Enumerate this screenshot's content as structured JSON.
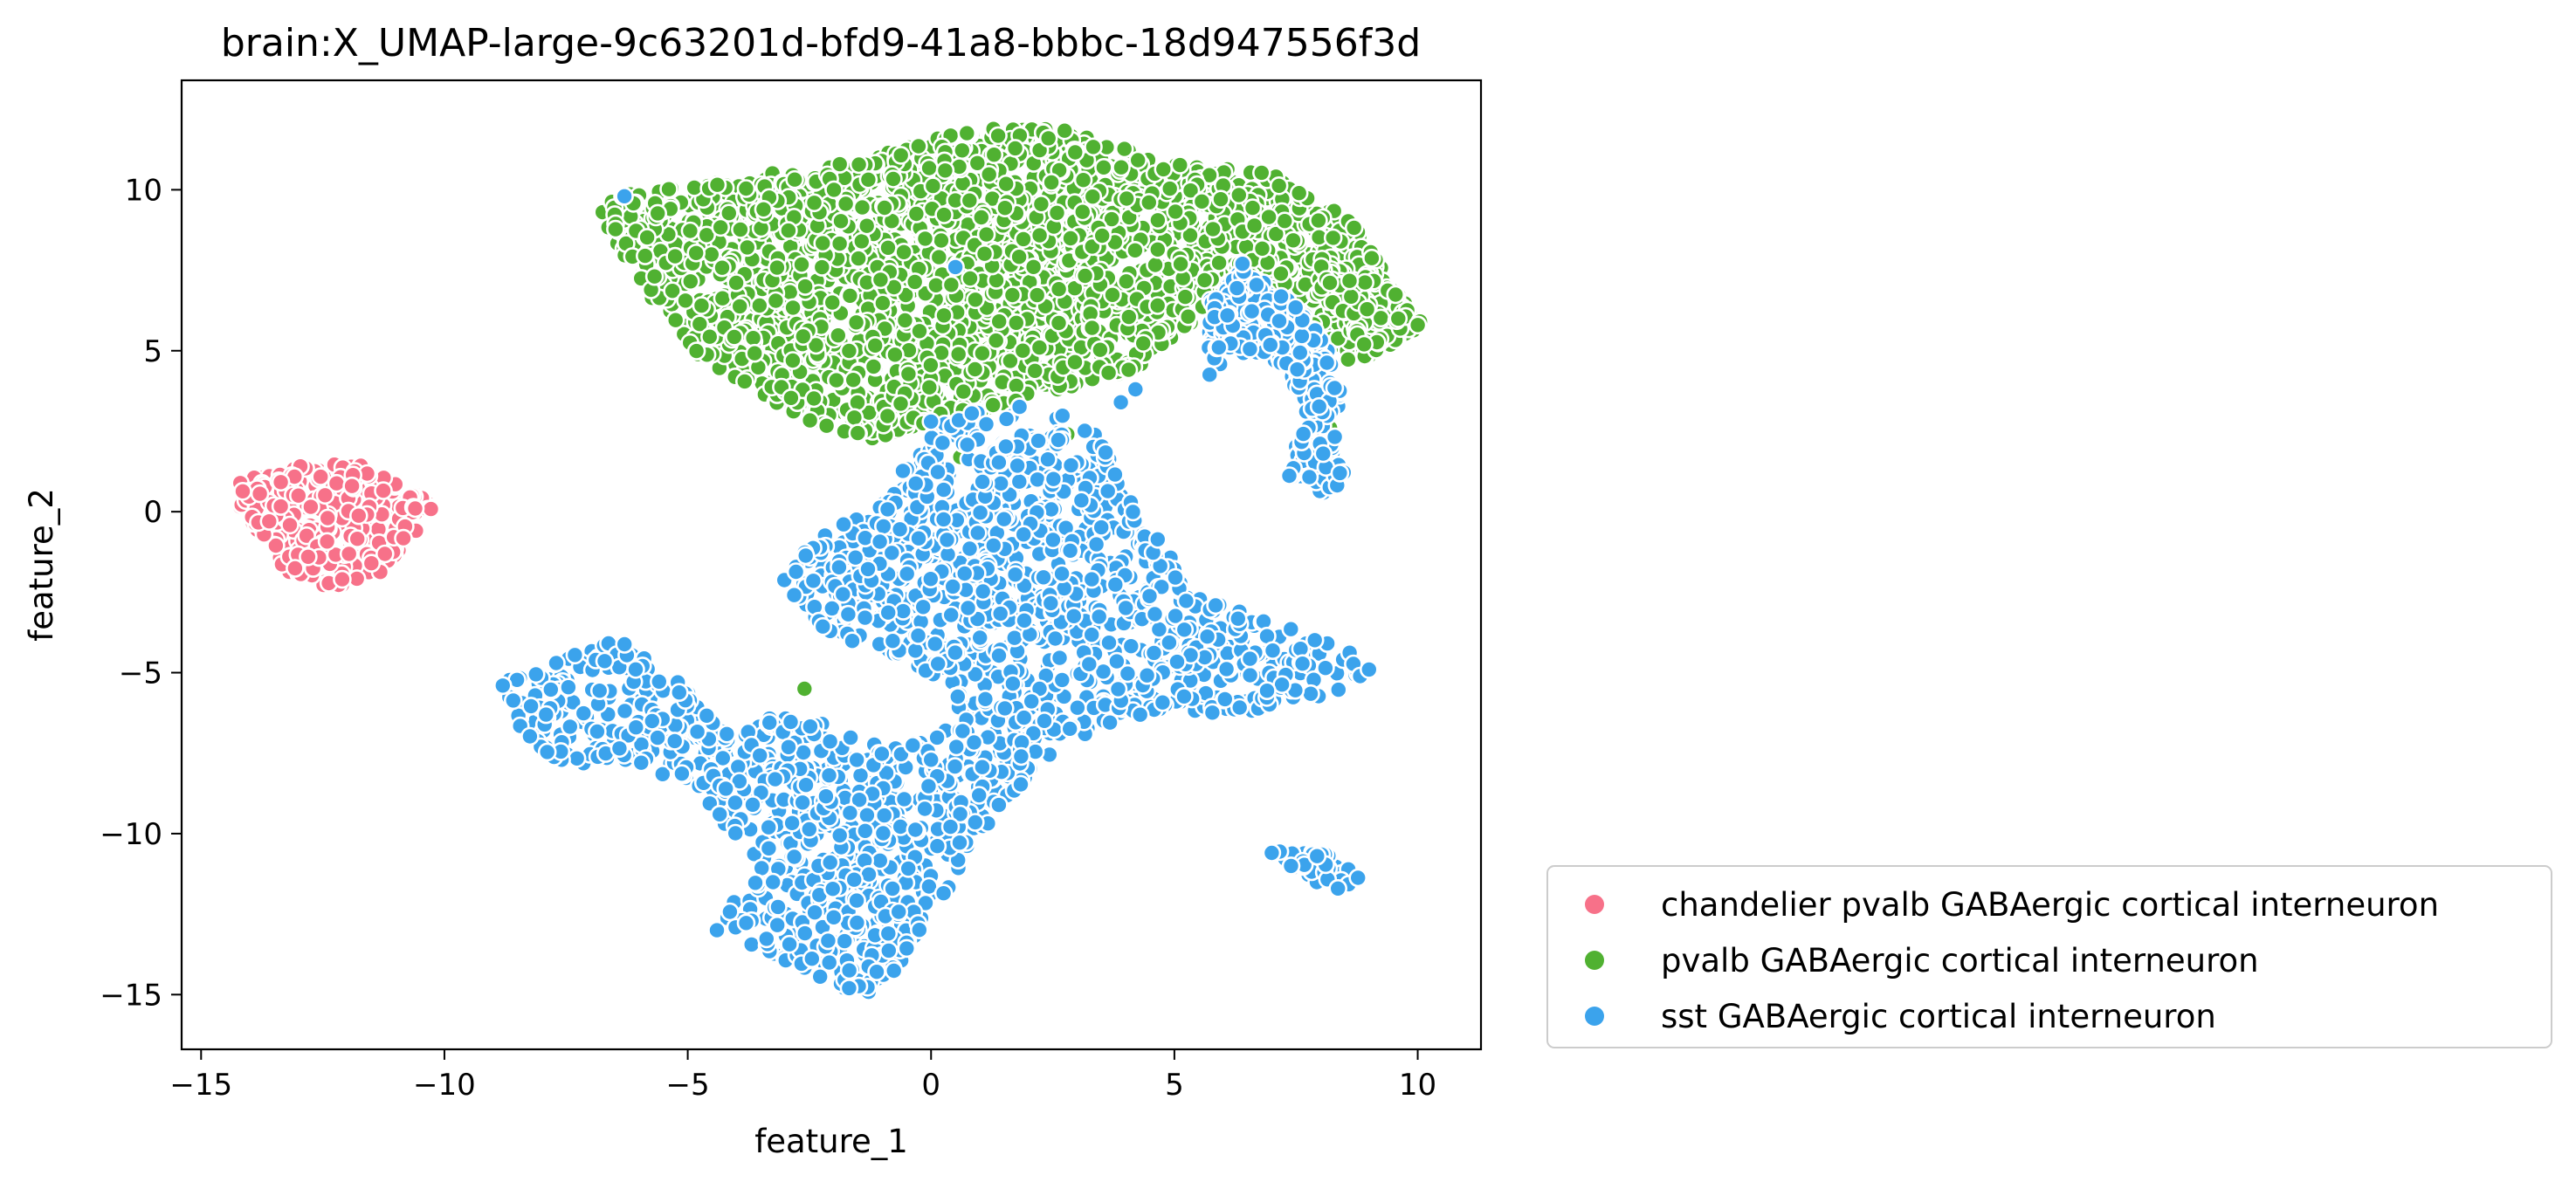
{
  "chart_data": {
    "type": "scatter",
    "title": "brain:X_UMAP-large-9c63201d-bfd9-41a8-bbbc-18d947556f3d",
    "xlabel": "feature_1",
    "ylabel": "feature_2",
    "xlim": [
      -15.4,
      11.3
    ],
    "ylim": [
      -16.7,
      13.4
    ],
    "xticks": [
      -15,
      -10,
      -5,
      0,
      5,
      10
    ],
    "xtick_labels": [
      "−15",
      "−10",
      "−5",
      "0",
      "5",
      "10"
    ],
    "yticks": [
      -15,
      -10,
      -5,
      0,
      5,
      10
    ],
    "ytick_labels": [
      "−15",
      "−10",
      "−5",
      "0",
      "5",
      "10"
    ],
    "grid": false,
    "legend_position": "outside-lower-right",
    "series": [
      {
        "name": "chandelier pvalb GABAergic cortical interneuron",
        "color": "#f77189",
        "regions": [
          {
            "polygon": [
              [
                -14.2,
                0.9
              ],
              [
                -13.3,
                1.4
              ],
              [
                -11.8,
                1.5
              ],
              [
                -10.9,
                0.8
              ],
              [
                -10.2,
                0.2
              ],
              [
                -10.6,
                -0.8
              ],
              [
                -11.3,
                -1.9
              ],
              [
                -12.3,
                -2.4
              ],
              [
                -13.2,
                -1.9
              ],
              [
                -13.9,
                -0.6
              ],
              [
                -14.3,
                0.3
              ]
            ],
            "density": 320
          }
        ],
        "points": [
          [
            -13.0,
            0.5
          ],
          [
            -12.4,
            -0.2
          ],
          [
            -11.9,
            0.8
          ],
          [
            -12.8,
            -1.4
          ],
          [
            -11.5,
            -1.6
          ],
          [
            -10.6,
            0.1
          ],
          [
            -13.6,
            -0.3
          ],
          [
            -12.1,
            -2.1
          ]
        ]
      },
      {
        "name": "pvalb GABAergic cortical interneuron",
        "color": "#50b131",
        "regions": [
          {
            "polygon": [
              [
                -6.9,
                9.7
              ],
              [
                -4.2,
                10.3
              ],
              [
                -1.5,
                10.9
              ],
              [
                0.8,
                11.9
              ],
              [
                2.7,
                11.9
              ],
              [
                4.8,
                10.9
              ],
              [
                7.1,
                10.5
              ],
              [
                8.6,
                9.1
              ],
              [
                9.5,
                7.0
              ],
              [
                10.1,
                5.7
              ],
              [
                9.1,
                4.9
              ],
              [
                8.6,
                4.6
              ],
              [
                7.4,
                6.1
              ],
              [
                6.0,
                6.8
              ],
              [
                5.4,
                5.9
              ],
              [
                4.2,
                4.4
              ],
              [
                2.2,
                3.6
              ],
              [
                0.6,
                2.9
              ],
              [
                -1.0,
                2.2
              ],
              [
                -2.2,
                2.6
              ],
              [
                -3.2,
                3.3
              ],
              [
                -4.8,
                4.9
              ],
              [
                -5.9,
                6.9
              ],
              [
                -6.6,
                8.6
              ]
            ],
            "density": 2600
          },
          {
            "polygon": [
              [
                8.0,
                8.0
              ],
              [
                9.2,
                7.3
              ],
              [
                10.1,
                5.9
              ],
              [
                9.4,
                5.0
              ],
              [
                8.6,
                5.6
              ],
              [
                7.9,
                6.8
              ]
            ],
            "density": 120
          }
        ],
        "points": [
          [
            -2.6,
            -5.5
          ],
          [
            7.9,
            3.0
          ],
          [
            7.7,
            2.2
          ],
          [
            8.2,
            2.6
          ],
          [
            0.6,
            1.7
          ],
          [
            2.8,
            2.4
          ],
          [
            8.9,
            5.2
          ],
          [
            9.6,
            6.0
          ],
          [
            10.0,
            5.8
          ]
        ]
      },
      {
        "name": "sst GABAergic cortical interneuron",
        "color": "#3ba3ec",
        "regions": [
          {
            "polygon": [
              [
                -0.2,
                2.6
              ],
              [
                1.4,
                3.3
              ],
              [
                2.6,
                3.2
              ],
              [
                3.6,
                2.2
              ],
              [
                3.9,
                0.9
              ],
              [
                4.6,
                -0.6
              ],
              [
                5.4,
                -2.6
              ],
              [
                6.9,
                -3.3
              ],
              [
                8.6,
                -4.3
              ],
              [
                9.0,
                -5.0
              ],
              [
                8.2,
                -5.8
              ],
              [
                6.1,
                -6.3
              ],
              [
                4.6,
                -6.2
              ],
              [
                3.3,
                -6.9
              ],
              [
                2.2,
                -8.1
              ],
              [
                1.5,
                -9.1
              ],
              [
                0.6,
                -11.1
              ],
              [
                -0.4,
                -13.6
              ],
              [
                -1.2,
                -15.1
              ],
              [
                -2.4,
                -14.6
              ],
              [
                -3.7,
                -13.6
              ],
              [
                -4.3,
                -12.6
              ],
              [
                -3.6,
                -11.1
              ],
              [
                -4.1,
                -9.9
              ],
              [
                -5.3,
                -8.3
              ],
              [
                -6.1,
                -8.0
              ],
              [
                -7.6,
                -7.8
              ],
              [
                -8.4,
                -6.9
              ],
              [
                -8.8,
                -5.3
              ],
              [
                -7.6,
                -4.6
              ],
              [
                -6.4,
                -3.9
              ],
              [
                -5.3,
                -5.1
              ],
              [
                -4.2,
                -6.8
              ],
              [
                -3.1,
                -6.3
              ],
              [
                -1.6,
                -6.7
              ],
              [
                -0.6,
                -7.3
              ],
              [
                0.6,
                -6.6
              ],
              [
                0.4,
                -5.3
              ],
              [
                -0.9,
                -4.5
              ],
              [
                -2.3,
                -3.6
              ],
              [
                -3.1,
                -2.1
              ],
              [
                -2.4,
                -0.9
              ],
              [
                -1.2,
                0.2
              ],
              [
                -0.6,
                1.2
              ]
            ],
            "density": 3600
          },
          {
            "polygon": [
              [
                5.7,
                6.6
              ],
              [
                6.4,
                7.5
              ],
              [
                7.4,
                6.6
              ],
              [
                8.1,
                5.3
              ],
              [
                8.4,
                3.8
              ],
              [
                8.3,
                2.0
              ],
              [
                8.6,
                1.0
              ],
              [
                8.0,
                0.5
              ],
              [
                7.3,
                1.1
              ],
              [
                7.6,
                3.2
              ],
              [
                7.2,
                4.6
              ],
              [
                6.2,
                5.0
              ],
              [
                5.7,
                4.2
              ]
            ],
            "density": 300
          },
          {
            "polygon": [
              [
                7.1,
                -10.5
              ],
              [
                8.1,
                -10.6
              ],
              [
                8.9,
                -11.4
              ],
              [
                8.4,
                -11.9
              ],
              [
                7.5,
                -11.2
              ]
            ],
            "density": 40
          }
        ],
        "points": [
          [
            -6.3,
            9.8
          ],
          [
            0.5,
            7.6
          ],
          [
            3.9,
            3.4
          ],
          [
            0.0,
            2.8
          ],
          [
            -8.8,
            -5.4
          ],
          [
            -4.4,
            -13.0
          ],
          [
            8.4,
            1.2
          ],
          [
            9.0,
            -4.9
          ],
          [
            7.0,
            -10.6
          ],
          [
            6.4,
            7.7
          ],
          [
            4.2,
            3.8
          ]
        ]
      }
    ]
  }
}
